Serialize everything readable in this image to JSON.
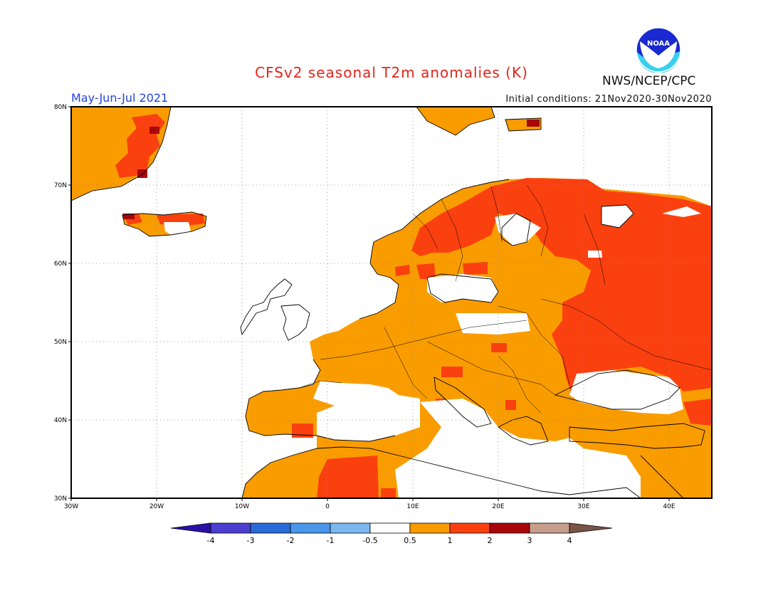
{
  "title": "CFSv2 seasonal T2m anomalies (K)",
  "period": "May-Jun-Jul 2021",
  "initial_conditions": "Initial conditions: 21Nov2020-30Nov2020",
  "agency": "NWS/NCEP/CPC",
  "logo_text": "NOAA",
  "lat_ticks": [
    "80N",
    "70N",
    "60N",
    "50N",
    "40N",
    "30N"
  ],
  "lon_ticks": [
    "30W",
    "20W",
    "10W",
    "0",
    "10E",
    "20E",
    "30E",
    "40E"
  ],
  "legend": {
    "labels": [
      "-4",
      "-3",
      "-2",
      "-1",
      "-0.5",
      "0.5",
      "1",
      "2",
      "3",
      "4"
    ],
    "colors": [
      "#2a10a8",
      "#4a3fd0",
      "#2a6ad8",
      "#4996ea",
      "#7bb8f0",
      "#ffffff",
      "#f99c00",
      "#fb4010",
      "#a8060a",
      "#c79e8c",
      "#7a5448"
    ]
  },
  "colors": {
    "warm_1": "#f99c00",
    "warm_2": "#fb4010",
    "warm_3": "#a8060a",
    "neutral": "#ffffff"
  }
}
